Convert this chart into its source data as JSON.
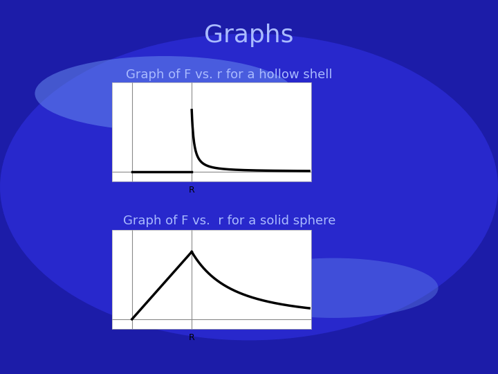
{
  "title": "Graphs",
  "subtitle1": "Graph of F vs. r for a hollow shell",
  "subtitle2": "Graph of F vs.  r for a solid sphere",
  "title_color": "#aabbff",
  "subtitle_color": "#aabbff",
  "bg_color_outer": "#1c1ca8",
  "bg_color_inner": "#2828cc",
  "plot_bg": "#ffffff",
  "curve_color": "#000000",
  "R_label": "R",
  "title_fontsize": 26,
  "subtitle_fontsize": 13
}
